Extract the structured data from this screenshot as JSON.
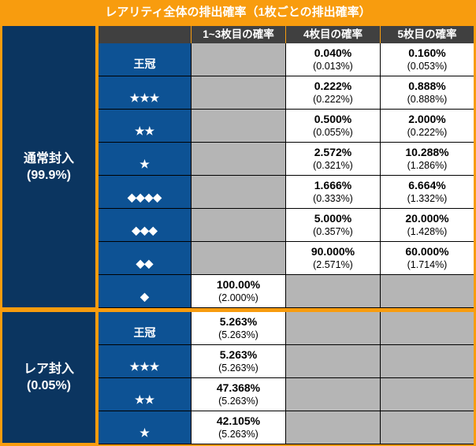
{
  "title": "レアリティ全体の排出確率（1枚ごとの排出確率）",
  "headers": [
    "1~3枚目の確率",
    "4枚目の確率",
    "5枚目の確率"
  ],
  "colors": {
    "accent": "#f89c0e",
    "section": "#0b3560",
    "label": "#0d5294",
    "header": "#404040",
    "empty": "#b5b5b5"
  },
  "sections": [
    {
      "name": "通常封入",
      "pct": "(99.9%)",
      "rows": [
        {
          "label": "王冠",
          "cells": [
            null,
            {
              "v": "0.040%",
              "s": "(0.013%)"
            },
            {
              "v": "0.160%",
              "s": "(0.053%)"
            }
          ]
        },
        {
          "label": "★★★",
          "cells": [
            null,
            {
              "v": "0.222%",
              "s": "(0.222%)"
            },
            {
              "v": "0.888%",
              "s": "(0.888%)"
            }
          ]
        },
        {
          "label": "★★",
          "cells": [
            null,
            {
              "v": "0.500%",
              "s": "(0.055%)"
            },
            {
              "v": "2.000%",
              "s": "(0.222%)"
            }
          ]
        },
        {
          "label": "★",
          "cells": [
            null,
            {
              "v": "2.572%",
              "s": "(0.321%)"
            },
            {
              "v": "10.288%",
              "s": "(1.286%)"
            }
          ]
        },
        {
          "label": "◆◆◆◆",
          "cells": [
            null,
            {
              "v": "1.666%",
              "s": "(0.333%)"
            },
            {
              "v": "6.664%",
              "s": "(1.332%)"
            }
          ]
        },
        {
          "label": "◆◆◆",
          "cells": [
            null,
            {
              "v": "5.000%",
              "s": "(0.357%)"
            },
            {
              "v": "20.000%",
              "s": "(1.428%)"
            }
          ]
        },
        {
          "label": "◆◆",
          "cells": [
            null,
            {
              "v": "90.000%",
              "s": "(2.571%)"
            },
            {
              "v": "60.000%",
              "s": "(1.714%)"
            }
          ]
        },
        {
          "label": "◆",
          "cells": [
            {
              "v": "100.00%",
              "s": "(2.000%)"
            },
            null,
            null
          ]
        }
      ]
    },
    {
      "name": "レア封入",
      "pct": "(0.05%)",
      "rows": [
        {
          "label": "王冠",
          "cells": [
            {
              "v": "5.263%",
              "s": "(5.263%)"
            },
            null,
            null
          ]
        },
        {
          "label": "★★★",
          "cells": [
            {
              "v": "5.263%",
              "s": "(5.263%)"
            },
            null,
            null
          ]
        },
        {
          "label": "★★",
          "cells": [
            {
              "v": "47.368%",
              "s": "(5.263%)"
            },
            null,
            null
          ]
        },
        {
          "label": "★",
          "cells": [
            {
              "v": "42.105%",
              "s": "(5.263%)"
            },
            null,
            null
          ]
        }
      ]
    }
  ]
}
